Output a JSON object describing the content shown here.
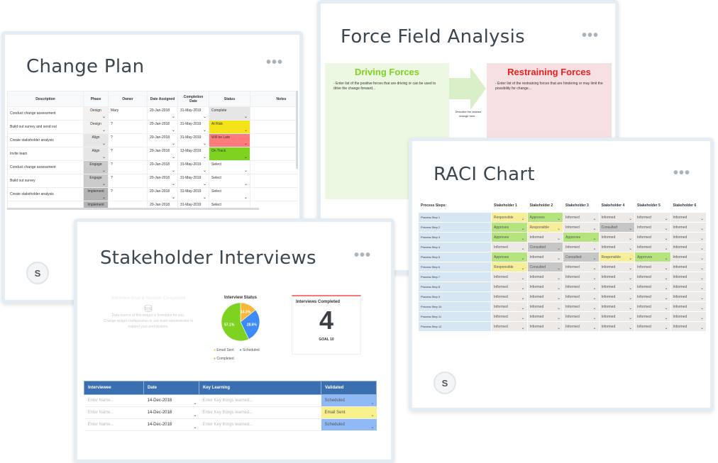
{
  "change_plan": {
    "title": "Change Plan",
    "avatar": "S",
    "columns": [
      "Description",
      "Phase",
      "Owner",
      "Date Assigned",
      "Completion Date",
      "Status",
      "Notes"
    ],
    "rows": [
      {
        "description": "Conduct change assessment",
        "phase": "Design",
        "owner": "Mary",
        "assigned": "20-Jan-2018",
        "completion": "31-May-2019",
        "status": "Complete"
      },
      {
        "description": "Build out survey and send out",
        "phase": "Design",
        "owner": "?",
        "assigned": "20-Jan-2018",
        "completion": "31-May-2019",
        "status": "At Risk"
      },
      {
        "description": "Create stakeholder analysis",
        "phase": "Align",
        "owner": "?",
        "assigned": "20-Jan-2018",
        "completion": "31-May-2019",
        "status": "Will be Late"
      },
      {
        "description": "Invite team",
        "phase": "Align",
        "owner": "?",
        "assigned": "20-Jan-2018",
        "completion": "13-May-2019",
        "status": "On Track"
      },
      {
        "description": "Conduct change assessment",
        "phase": "Engage",
        "owner": "?",
        "assigned": "20-Jan-2018",
        "completion": "31-May-2019",
        "status": "Select"
      },
      {
        "description": "Build out survey",
        "phase": "Engage",
        "owner": "?",
        "assigned": "20-Jan-2018",
        "completion": "31-May-2019",
        "status": "Select"
      },
      {
        "description": "Create stakeholder analysis",
        "phase": "Implement",
        "owner": "?",
        "assigned": "20-Jan-2018",
        "completion": "31-May-2019",
        "status": "Select"
      },
      {
        "description": "",
        "phase": "Implement",
        "owner": "",
        "assigned": "20-Jan-2018",
        "completion": "31-May-2019",
        "status": "Select"
      }
    ],
    "phase_colors": {
      "Design": "#f3f2f1",
      "Align": "#e6e6e6",
      "Engage": "#cbcbcb",
      "Implement": "#b4b4b4"
    },
    "status_colors": {
      "Complete": "#e6e6e6",
      "At Risk": "#f5e31a",
      "Will be Late": "#ff7b7b",
      "On Track": "#7ed321",
      "Select": "#ffffff"
    }
  },
  "force_field": {
    "title": "Force Field Analysis",
    "driving": {
      "heading": "Driving Forces",
      "text": "-  Enter list of the positive forces that are driving or can be used to drive the change forward...",
      "color": "#7ed321"
    },
    "restraining": {
      "heading": "Restraining Forces",
      "text": "-  Enter list of the restraining forces that are hindering or may limit the possibility for change...",
      "color": "#f01e1e"
    },
    "center": "Describe the desired change here..."
  },
  "raci": {
    "title": "RACI Chart",
    "avatar": "S",
    "columns": [
      "Process Steps:",
      "Stakeholder 1",
      "Stakeholder 2",
      "Stakeholder 3",
      "Stakeholder 4",
      "Stakeholder 5",
      "Stakeholder 6"
    ],
    "rows": [
      {
        "step": "Process Step 1",
        "values": [
          "Responsible",
          "Approves",
          "Informed",
          "Informed",
          "Informed",
          "Informed"
        ]
      },
      {
        "step": "Process Step 2",
        "values": [
          "Approves",
          "Responsible",
          "Informed",
          "Consulted",
          "Informed",
          "Informed"
        ]
      },
      {
        "step": "Process Step 3",
        "values": [
          "Approves",
          "Informed",
          "Approves",
          "Informed",
          "Informed",
          "Informed"
        ]
      },
      {
        "step": "Process Step 4",
        "values": [
          "Informed",
          "Consulted",
          "Informed",
          "Informed",
          "Informed",
          "Informed"
        ]
      },
      {
        "step": "Process Step 5",
        "values": [
          "Approves",
          "Informed",
          "Consulted",
          "Responsible",
          "Approves",
          "Informed"
        ]
      },
      {
        "step": "Process Step 6",
        "values": [
          "Responsible",
          "Consulted",
          "Informed",
          "Informed",
          "Informed",
          "Informed"
        ]
      },
      {
        "step": "Process Step 7",
        "values": [
          "Informed",
          "Informed",
          "Informed",
          "Informed",
          "Informed",
          "Informed"
        ]
      },
      {
        "step": "Process Step 8",
        "values": [
          "Informed",
          "Informed",
          "Informed",
          "Informed",
          "Informed",
          "Informed"
        ]
      },
      {
        "step": "Process Step 9",
        "values": [
          "Informed",
          "Informed",
          "Informed",
          "Informed",
          "Informed",
          "Informed"
        ]
      },
      {
        "step": "Process Step 10",
        "values": [
          "Informed",
          "Informed",
          "Informed",
          "Informed",
          "Informed",
          "Informed"
        ]
      },
      {
        "step": "Process Step 11",
        "values": [
          "Informed",
          "Informed",
          "Informed",
          "Informed",
          "Informed",
          "Informed"
        ]
      },
      {
        "step": "Process Step 12",
        "values": [
          "Informed",
          "Informed",
          "Informed",
          "Informed",
          "Informed",
          "Informed"
        ]
      }
    ],
    "colors": {
      "Responsible": "#f6ee9a",
      "Approves": "#b5e37d",
      "Consulted": "#c6c6c6",
      "Informed": "#ece9e7"
    }
  },
  "stakeholder": {
    "title": "Stakeholder Interviews",
    "forbidden": {
      "heading": "Interview Goal & Number Completed",
      "line1": "Data source of this widget is forbidden for you.",
      "line2": "Change widget configuration or ask team administrator to expand your permissions."
    },
    "pie": {
      "title": "Interview Status",
      "slices": [
        {
          "name": "Email Sent",
          "value": 14.3,
          "label": "14.3%",
          "color": "#f9b83a"
        },
        {
          "name": "Scheduled",
          "value": 28.6,
          "label": "28.6%",
          "color": "#3d8bf5"
        },
        {
          "name": "Completed",
          "value": 57.1,
          "label": "57.1%",
          "color": "#7ed321"
        }
      ]
    },
    "kpi": {
      "label": "Interviews Completed",
      "value": "4",
      "goal": "GOAL 10",
      "accent": "#f27a7a"
    },
    "table": {
      "columns": [
        "Interviewee",
        "Date",
        "Key Learning",
        "Validated"
      ],
      "rows": [
        {
          "name_placeholder": "Enter Name...",
          "date": "14-Dec-2018",
          "learning_placeholder": "Enter Key things learned...",
          "validated": "Scheduled",
          "color": "#8fbaf5"
        },
        {
          "name_placeholder": "Enter Name...",
          "date": "14-Dec-2018",
          "learning_placeholder": "Enter Key things learned...",
          "validated": "Email Sent",
          "color": "#f8f08a"
        },
        {
          "name_placeholder": "Enter Name...",
          "date": "14-Dec-2018",
          "learning_placeholder": "Enter Key things learned...",
          "validated": "Scheduled",
          "color": "#8fbaf5"
        }
      ]
    }
  }
}
